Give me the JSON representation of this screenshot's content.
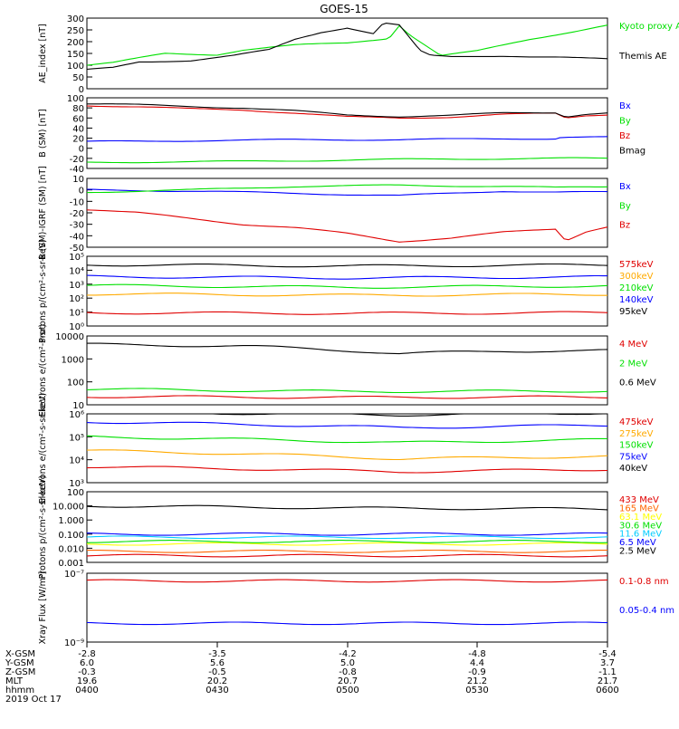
{
  "title": "GOES-15",
  "chart_data": [
    {
      "type": "line",
      "ylabel": "AE_index [nT]",
      "ylim": [
        0,
        300
      ],
      "yticks": [
        "0",
        "50",
        "100",
        "150",
        "200",
        "250",
        "300"
      ],
      "log": false,
      "legend": [
        "Kyoto proxy AE",
        "Themis AE"
      ],
      "legend_placement": "right",
      "series": [
        {
          "name": "Kyoto proxy AE",
          "color": "#00e000",
          "points": [
            [
              0,
              100
            ],
            [
              0.05,
              110
            ],
            [
              0.1,
              130
            ],
            [
              0.15,
              150
            ],
            [
              0.25,
              145
            ],
            [
              0.3,
              165
            ],
            [
              0.4,
              185
            ],
            [
              0.5,
              195
            ],
            [
              0.58,
              215
            ],
            [
              0.6,
              270
            ],
            [
              0.62,
              230
            ],
            [
              0.68,
              140
            ],
            [
              0.75,
              160
            ],
            [
              0.85,
              210
            ],
            [
              0.95,
              250
            ],
            [
              1,
              270
            ]
          ]
        },
        {
          "name": "Themis AE",
          "color": "#000000",
          "points": [
            [
              0,
              80
            ],
            [
              0.05,
              90
            ],
            [
              0.1,
              115
            ],
            [
              0.2,
              120
            ],
            [
              0.28,
              140
            ],
            [
              0.35,
              165
            ],
            [
              0.4,
              210
            ],
            [
              0.45,
              240
            ],
            [
              0.5,
              260
            ],
            [
              0.55,
              235
            ],
            [
              0.57,
              280
            ],
            [
              0.6,
              270
            ],
            [
              0.64,
              160
            ],
            [
              0.66,
              140
            ],
            [
              0.7,
              135
            ],
            [
              0.8,
              140
            ],
            [
              0.9,
              135
            ],
            [
              1,
              125
            ]
          ]
        }
      ]
    },
    {
      "type": "line",
      "ylabel": "B (SM) [nT]",
      "ylim": [
        -40,
        100
      ],
      "yticks": [
        "-40",
        "-20",
        "0",
        "20",
        "40",
        "60",
        "80",
        "100"
      ],
      "log": false,
      "legend": [
        "Bx",
        "By",
        "Bz",
        "Bmag"
      ],
      "legend_placement": "right",
      "series": [
        {
          "name": "Bx",
          "color": "#0000ff",
          "points": [
            [
              0,
              13
            ],
            [
              0.2,
              15
            ],
            [
              0.4,
              17
            ],
            [
              0.6,
              17
            ],
            [
              0.8,
              19
            ],
            [
              0.9,
              19
            ],
            [
              0.91,
              22
            ],
            [
              1,
              22
            ]
          ]
        },
        {
          "name": "By",
          "color": "#00e000",
          "points": [
            [
              0,
              -28
            ],
            [
              0.3,
              -26
            ],
            [
              0.6,
              -22
            ],
            [
              0.9,
              -20
            ],
            [
              1,
              -20
            ]
          ]
        },
        {
          "name": "Bz",
          "color": "#e00000",
          "points": [
            [
              0,
              85
            ],
            [
              0.1,
              82
            ],
            [
              0.2,
              78
            ],
            [
              0.3,
              76
            ],
            [
              0.4,
              70
            ],
            [
              0.5,
              62
            ],
            [
              0.6,
              60
            ],
            [
              0.7,
              62
            ],
            [
              0.8,
              67
            ],
            [
              0.9,
              69
            ],
            [
              0.92,
              60
            ],
            [
              0.96,
              65
            ],
            [
              1,
              67
            ]
          ]
        },
        {
          "name": "Bmag",
          "color": "#000000",
          "points": [
            [
              0,
              88
            ],
            [
              0.1,
              86
            ],
            [
              0.2,
              83
            ],
            [
              0.3,
              80
            ],
            [
              0.4,
              74
            ],
            [
              0.5,
              66
            ],
            [
              0.6,
              63
            ],
            [
              0.7,
              65
            ],
            [
              0.8,
              70
            ],
            [
              0.9,
              71
            ],
            [
              0.92,
              63
            ],
            [
              0.96,
              68
            ],
            [
              1,
              70
            ]
          ]
        }
      ]
    },
    {
      "type": "line",
      "ylabel": "B (SM)-IGRF (SM) [nT]",
      "ylim": [
        -50,
        10
      ],
      "yticks": [
        "-50",
        "-40",
        "-30",
        "-20",
        "-10",
        "0",
        "10"
      ],
      "log": false,
      "legend": [
        "Bx",
        "By",
        "Bz"
      ],
      "legend_placement": "right",
      "series": [
        {
          "name": "Bx",
          "color": "#0000ff",
          "points": [
            [
              0,
              0
            ],
            [
              0.2,
              -1
            ],
            [
              0.4,
              -3
            ],
            [
              0.6,
              -5
            ],
            [
              0.7,
              -3
            ],
            [
              0.8,
              -1
            ],
            [
              0.9,
              -2
            ],
            [
              1,
              -2
            ]
          ]
        },
        {
          "name": "By",
          "color": "#00e000",
          "points": [
            [
              0,
              -2
            ],
            [
              0.2,
              0
            ],
            [
              0.4,
              3
            ],
            [
              0.6,
              4
            ],
            [
              0.8,
              3
            ],
            [
              0.9,
              2
            ],
            [
              1,
              3
            ]
          ]
        },
        {
          "name": "Bz",
          "color": "#e00000",
          "points": [
            [
              0,
              -17
            ],
            [
              0.1,
              -20
            ],
            [
              0.2,
              -25
            ],
            [
              0.3,
              -30
            ],
            [
              0.4,
              -33
            ],
            [
              0.5,
              -38
            ],
            [
              0.6,
              -45
            ],
            [
              0.7,
              -42
            ],
            [
              0.8,
              -37
            ],
            [
              0.9,
              -34
            ],
            [
              0.92,
              -44
            ],
            [
              0.96,
              -36
            ],
            [
              1,
              -32
            ]
          ]
        }
      ]
    },
    {
      "type": "line",
      "ylabel": "Protons p/(cm²-s-sr-keV)",
      "ylim": [
        1,
        100000
      ],
      "yticks": [
        "10⁰",
        "10¹",
        "10²",
        "10³",
        "10⁴",
        "10⁵"
      ],
      "log": true,
      "legend": [
        "575keV",
        "300keV",
        "210keV",
        "140keV",
        "95keV"
      ],
      "legend_placement": "right",
      "series": [
        {
          "name": "575keV",
          "color": "#e00000",
          "points": [
            [
              0,
              9
            ],
            [
              0.5,
              8
            ],
            [
              1,
              9
            ]
          ]
        },
        {
          "name": "300keV",
          "color": "#ffaa00",
          "points": [
            [
              0,
              200
            ],
            [
              0.5,
              160
            ],
            [
              1,
              190
            ]
          ]
        },
        {
          "name": "210keV",
          "color": "#00e000",
          "points": [
            [
              0,
              800
            ],
            [
              0.5,
              600
            ],
            [
              1,
              750
            ]
          ]
        },
        {
          "name": "140keV",
          "color": "#0000ff",
          "points": [
            [
              0,
              3500
            ],
            [
              0.5,
              2800
            ],
            [
              1,
              3300
            ]
          ]
        },
        {
          "name": "95keV",
          "color": "#000000",
          "points": [
            [
              0,
              25000
            ],
            [
              0.5,
              20000
            ],
            [
              1,
              24000
            ]
          ]
        }
      ]
    },
    {
      "type": "line",
      "ylabel": "Electrons e/(cm²-s-sr)",
      "ylim": [
        10,
        10000
      ],
      "yticks": [
        "10",
        "100",
        "1000",
        "10000"
      ],
      "log": true,
      "legend": [
        "4 MeV",
        "2 MeV",
        "0.6 MeV"
      ],
      "legend_placement": "right",
      "series": [
        {
          "name": "4 MeV",
          "color": "#e00000",
          "points": [
            [
              0,
              23
            ],
            [
              0.5,
              21
            ],
            [
              1,
              22
            ]
          ]
        },
        {
          "name": "2 MeV",
          "color": "#00e000",
          "points": [
            [
              0,
              48
            ],
            [
              0.5,
              38
            ],
            [
              1,
              40
            ]
          ]
        },
        {
          "name": "0.6 MeV",
          "color": "#000000",
          "points": [
            [
              0,
              4300
            ],
            [
              0.3,
              3600
            ],
            [
              0.6,
              1700
            ],
            [
              0.8,
              2200
            ],
            [
              1,
              2300
            ]
          ]
        }
      ]
    },
    {
      "type": "line",
      "ylabel": "Electrons e/(cm²-s-sr-keV)",
      "ylim": [
        1000,
        1000000
      ],
      "yticks": [
        "10³",
        "10⁴",
        "10⁵",
        "10⁶"
      ],
      "log": true,
      "legend": [
        "475keV",
        "275keV",
        "150keV",
        "75keV",
        "40keV"
      ],
      "legend_placement": "right",
      "series": [
        {
          "name": "475keV",
          "color": "#e00000",
          "points": [
            [
              0,
              5000
            ],
            [
              0.6,
              3000
            ],
            [
              1,
              3800
            ]
          ]
        },
        {
          "name": "275keV",
          "color": "#ffaa00",
          "points": [
            [
              0,
              25000
            ],
            [
              0.6,
              11000
            ],
            [
              1,
              14000
            ]
          ]
        },
        {
          "name": "150keV",
          "color": "#00e000",
          "points": [
            [
              0,
              100000
            ],
            [
              0.6,
              55000
            ],
            [
              1,
              75000
            ]
          ]
        },
        {
          "name": "75keV",
          "color": "#0000ff",
          "points": [
            [
              0,
              450000
            ],
            [
              0.6,
              250000
            ],
            [
              1,
              320000
            ]
          ]
        },
        {
          "name": "40keV",
          "color": "#000000",
          "points": [
            [
              0,
              1200000
            ],
            [
              0.6,
              900000
            ],
            [
              1,
              1100000
            ]
          ]
        }
      ]
    },
    {
      "type": "line",
      "ylabel": "Protons p/(cm²-s-sr-keV)",
      "ylim": [
        0.001,
        100
      ],
      "yticks": [
        "0.001",
        "0.010",
        "0.100",
        "1.000",
        "10.000",
        "100"
      ],
      "log": true,
      "legend": [
        "433 MeV",
        "165 MeV",
        "63.1 MeV",
        "30.6 MeV",
        "11.6 MeV",
        "6.5 MeV",
        "2.5 MeV"
      ],
      "legend_placement": "right",
      "series": [
        {
          "name": "433 MeV",
          "color": "#e00000",
          "points": [
            [
              0,
              0.003
            ],
            [
              1,
              0.003
            ]
          ]
        },
        {
          "name": "165 MeV",
          "color": "#ff6600",
          "points": [
            [
              0,
              0.006
            ],
            [
              1,
              0.006
            ]
          ]
        },
        {
          "name": "63.1 MeV",
          "color": "#ffff00",
          "points": [
            [
              0,
              0.02
            ],
            [
              1,
              0.02
            ]
          ]
        },
        {
          "name": "30.6 MeV",
          "color": "#00e000",
          "points": [
            [
              0,
              0.03
            ],
            [
              1,
              0.03
            ]
          ]
        },
        {
          "name": "11.6 MeV",
          "color": "#00ccff",
          "points": [
            [
              0,
              0.06
            ],
            [
              1,
              0.06
            ]
          ]
        },
        {
          "name": "6.5 MeV",
          "color": "#0000ff",
          "points": [
            [
              0,
              0.1
            ],
            [
              1,
              0.1
            ]
          ]
        },
        {
          "name": "2.5 MeV",
          "color": "#000000",
          "points": [
            [
              0,
              10
            ],
            [
              0.5,
              7
            ],
            [
              1,
              6
            ]
          ]
        }
      ]
    },
    {
      "type": "line",
      "ylabel": "Xray Flux [W/m²]",
      "ylim": [
        1e-09,
        1e-07
      ],
      "yticks": [
        "10⁻⁹",
        "10⁻⁷"
      ],
      "log": true,
      "legend": [
        "0.1-0.8 nm",
        "0.05-0.4 nm"
      ],
      "legend_placement": "right",
      "series": [
        {
          "name": "0.1-0.8 nm",
          "color": "#e00000",
          "points": [
            [
              0,
              6e-08
            ],
            [
              1,
              6e-08
            ]
          ]
        },
        {
          "name": "0.05-0.4 nm",
          "color": "#0000ff",
          "points": [
            [
              0,
              3.5e-09
            ],
            [
              1,
              3.5e-09
            ]
          ]
        }
      ]
    }
  ],
  "axis_table": {
    "row_labels": [
      "X-GSM",
      "Y-GSM",
      "Z-GSM",
      "MLT",
      "hhmm",
      "2019 Oct 17"
    ],
    "columns": [
      {
        "values": [
          "-2.8",
          "6.0",
          "-0.3",
          "19.6",
          "0400"
        ]
      },
      {
        "values": [
          "-3.5",
          "5.6",
          "-0.5",
          "20.2",
          "0430"
        ]
      },
      {
        "values": [
          "-4.2",
          "5.0",
          "-0.8",
          "20.7",
          "0500"
        ]
      },
      {
        "values": [
          "-4.8",
          "4.4",
          "-0.9",
          "21.2",
          "0530"
        ]
      },
      {
        "values": [
          "-5.4",
          "3.7",
          "-1.1",
          "21.7",
          "0600"
        ]
      }
    ]
  }
}
